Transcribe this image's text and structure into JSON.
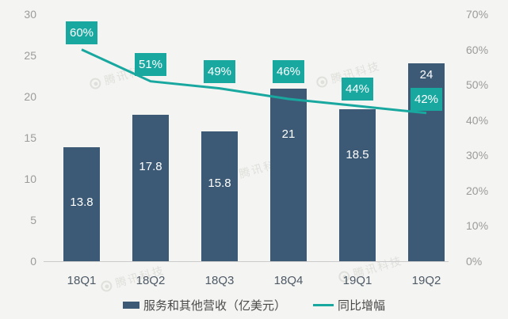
{
  "chart_data": {
    "type": "bar+line",
    "categories": [
      "18Q1",
      "18Q2",
      "18Q3",
      "18Q4",
      "19Q1",
      "19Q2"
    ],
    "series": [
      {
        "name": "服务和其他营收（亿美元）",
        "type": "bar",
        "axis": "left",
        "values": [
          13.8,
          17.8,
          15.8,
          21,
          18.5,
          24
        ],
        "labels": [
          "13.8",
          "17.8",
          "15.8",
          "21",
          "18.5",
          "24"
        ],
        "color": "#3c5a76"
      },
      {
        "name": "同比增幅",
        "type": "line",
        "axis": "right",
        "values": [
          60,
          51,
          49,
          46,
          44,
          42
        ],
        "labels": [
          "60%",
          "51%",
          "49%",
          "46%",
          "44%",
          "42%"
        ],
        "color": "#19a8a0"
      }
    ],
    "left_axis": {
      "ticks": [
        "30",
        "25",
        "20",
        "15",
        "10",
        "5",
        "0"
      ],
      "range": [
        0,
        30
      ]
    },
    "right_axis": {
      "ticks": [
        "70%",
        "60%",
        "50%",
        "40%",
        "30%",
        "20%",
        "10%",
        "0%"
      ],
      "range": [
        0,
        70
      ]
    },
    "grid": false,
    "legend_position": "bottom"
  },
  "legend": {
    "bar_label": "服务和其他营收（亿美元）",
    "line_label": "同比增幅"
  },
  "watermark": {
    "text": "腾讯科技"
  },
  "colors": {
    "background": "#f4f4f2",
    "bar": "#3c5a76",
    "line": "#19a8a0",
    "axis_text": "#9b9b9b",
    "category_text": "#4e5a66",
    "legend_text": "#4a4a4a",
    "value_label_text": "#ffffff"
  }
}
